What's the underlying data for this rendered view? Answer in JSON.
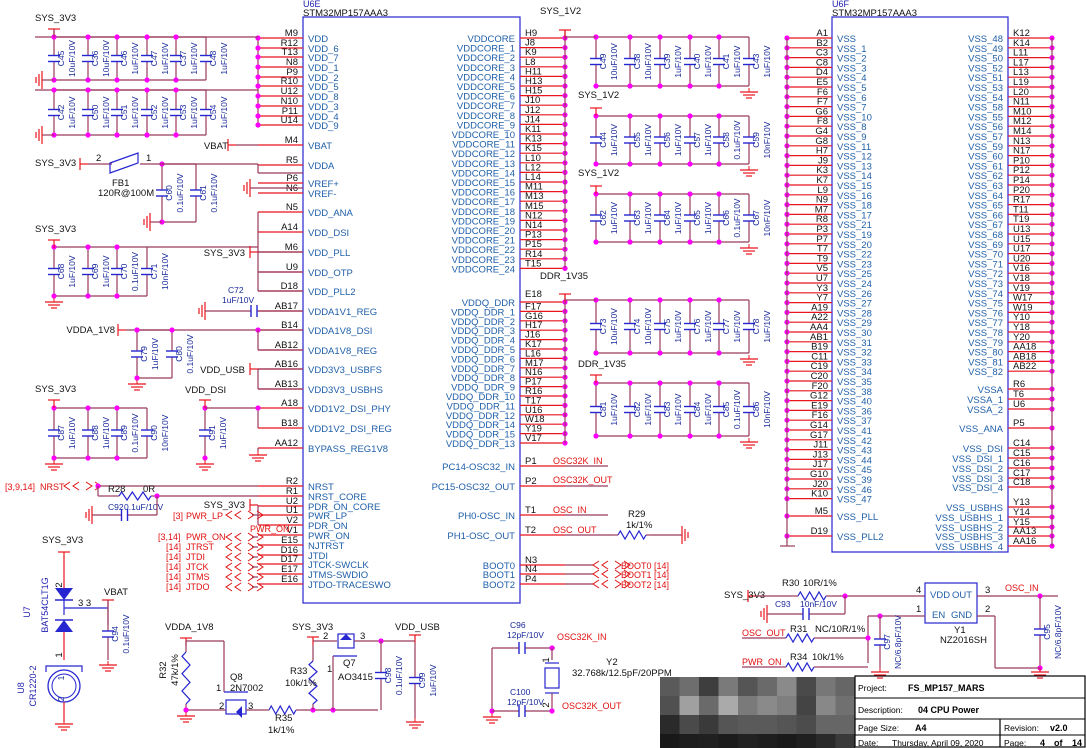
{
  "u6e": {
    "ref": "U6E",
    "part": "STM32MP157AAA3",
    "left_pins": [
      [
        "M9",
        "VDD"
      ],
      [
        "R12",
        "VDD_6"
      ],
      [
        "T13",
        "VDD_7"
      ],
      [
        "N8",
        "VDD_1"
      ],
      [
        "P9",
        "VDD_2"
      ],
      [
        "R10",
        "VDD_5"
      ],
      [
        "U12",
        "VDD_8"
      ],
      [
        "N10",
        "VDD_3"
      ],
      [
        "P11",
        "VDD_4"
      ],
      [
        "U14",
        "VDD_9"
      ],
      [
        "M4",
        "VBAT"
      ],
      [
        "R5",
        "VDDA"
      ],
      [
        "P6",
        "VREF+"
      ],
      [
        "N6",
        "VREF-"
      ],
      [
        "N5",
        "VDD_ANA"
      ],
      [
        "A14",
        "VDD_DSI"
      ],
      [
        "M6",
        "VDD_PLL"
      ],
      [
        "U9",
        "VDD_OTP"
      ],
      [
        "D18",
        "VDD_PLL2"
      ],
      [
        "AB17",
        "VDDA1V1_REG"
      ],
      [
        "B14",
        "VDDA1V8_DSI"
      ],
      [
        "AB12",
        "VDDA1V8_REG"
      ],
      [
        "AB16",
        "VDD3V3_USBFS"
      ],
      [
        "AB13",
        "VDD3V3_USBHS"
      ],
      [
        "A18",
        "VDD1V2_DSI_PHY"
      ],
      [
        "B18",
        "VDD1V2_DSI_REG"
      ],
      [
        "AA12",
        "BYPASS_REG1V8"
      ],
      [
        "R2",
        "NRST"
      ],
      [
        "R1",
        "NRST_CORE"
      ],
      [
        "U2",
        "PDR_ON_CORE"
      ],
      [
        "U1",
        "PWR_LP"
      ],
      [
        "V2",
        "PDR_ON"
      ],
      [
        "V1",
        "PWR_ON"
      ],
      [
        "E15",
        "NJTRST"
      ],
      [
        "D16",
        "JTDI"
      ],
      [
        "D17",
        "JTCK-SWCLK"
      ],
      [
        "E17",
        "JTMS-SWDIO"
      ],
      [
        "E16",
        "JTDO-TRACESWO"
      ]
    ],
    "right_pins": [
      [
        "H9",
        "VDDCORE"
      ],
      [
        "J8",
        "VDDCORE_1"
      ],
      [
        "K9",
        "VDDCORE_2"
      ],
      [
        "L8",
        "VDDCORE_3"
      ],
      [
        "H11",
        "VDDCORE_4"
      ],
      [
        "H13",
        "VDDCORE_5"
      ],
      [
        "H15",
        "VDDCORE_6"
      ],
      [
        "J10",
        "VDDCORE_7"
      ],
      [
        "J12",
        "VDDCORE_8"
      ],
      [
        "J14",
        "VDDCORE_9"
      ],
      [
        "K11",
        "VDDCORE_10"
      ],
      [
        "K13",
        "VDDCORE_11"
      ],
      [
        "K15",
        "VDDCORE_12"
      ],
      [
        "L10",
        "VDDCORE_13"
      ],
      [
        "L12",
        "VDDCORE_14"
      ],
      [
        "L14",
        "VDDCORE_15"
      ],
      [
        "M11",
        "VDDCORE_16"
      ],
      [
        "M13",
        "VDDCORE_17"
      ],
      [
        "M15",
        "VDDCORE_18"
      ],
      [
        "N12",
        "VDDCORE_19"
      ],
      [
        "N14",
        "VDDCORE_20"
      ],
      [
        "P13",
        "VDDCORE_21"
      ],
      [
        "P15",
        "VDDCORE_22"
      ],
      [
        "R14",
        "VDDCORE_23"
      ],
      [
        "T15",
        "VDDCORE_24"
      ],
      [
        "E18",
        "VDDQ_DDR"
      ],
      [
        "F17",
        "VDDQ_DDR_1"
      ],
      [
        "G16",
        "VDDQ_DDR_2"
      ],
      [
        "H17",
        "VDDQ_DDR_3"
      ],
      [
        "J16",
        "VDDQ_DDR_4"
      ],
      [
        "K17",
        "VDDQ_DDR_5"
      ],
      [
        "L16",
        "VDDQ_DDR_6"
      ],
      [
        "M17",
        "VDDQ_DDR_7"
      ],
      [
        "N16",
        "VDDQ_DDR_8"
      ],
      [
        "P17",
        "VDDQ_DDR_9"
      ],
      [
        "R16",
        "VDDQ_DDR_10"
      ],
      [
        "T17",
        "VDDQ_DDR_11"
      ],
      [
        "U16",
        "VDDQ_DDR_12"
      ],
      [
        "W18",
        "VDDQ_DDR_14"
      ],
      [
        "Y19",
        "VDDQ_DDR_15"
      ],
      [
        "V17",
        "VDDQ_DDR_13"
      ],
      [
        "P1",
        "PC14-OSC32_IN"
      ],
      [
        "P2",
        "PC15-OSC32_OUT"
      ],
      [
        "T1",
        "PH0-OSC_IN"
      ],
      [
        "T2",
        "PH1-OSC_OUT"
      ],
      [
        "N3",
        "BOOT0"
      ],
      [
        "N4",
        "BOOT1"
      ],
      [
        "P4",
        "BOOT2"
      ]
    ]
  },
  "u6f": {
    "ref": "U6F",
    "part": "STM32MP157AAA3",
    "left_pins": [
      [
        "A1",
        "VSS"
      ],
      [
        "B2",
        "VSS_1"
      ],
      [
        "C3",
        "VSS_2"
      ],
      [
        "C8",
        "VSS_3"
      ],
      [
        "D4",
        "VSS_4"
      ],
      [
        "E5",
        "VSS_5"
      ],
      [
        "F6",
        "VSS_6"
      ],
      [
        "F7",
        "VSS_7"
      ],
      [
        "G6",
        "VSS_10"
      ],
      [
        "F8",
        "VSS_8"
      ],
      [
        "G4",
        "VSS_9"
      ],
      [
        "G8",
        "VSS_11"
      ],
      [
        "H7",
        "VSS_12"
      ],
      [
        "J9",
        "VSS_13"
      ],
      [
        "K3",
        "VSS_14"
      ],
      [
        "K7",
        "VSS_15"
      ],
      [
        "L9",
        "VSS_16"
      ],
      [
        "N9",
        "VSS_18"
      ],
      [
        "M7",
        "VSS_17"
      ],
      [
        "R8",
        "VSS_21"
      ],
      [
        "P3",
        "VSS_19"
      ],
      [
        "P7",
        "VSS_20"
      ],
      [
        "T7",
        "VSS_22"
      ],
      [
        "T9",
        "VSS_23"
      ],
      [
        "V5",
        "VSS_25"
      ],
      [
        "U7",
        "VSS_24"
      ],
      [
        "Y3",
        "VSS_26"
      ],
      [
        "Y7",
        "VSS_27"
      ],
      [
        "A19",
        "VSS_28"
      ],
      [
        "A22",
        "VSS_29"
      ],
      [
        "AA4",
        "VSS_30"
      ],
      [
        "AB1",
        "VSS_31"
      ],
      [
        "B19",
        "VSS_32"
      ],
      [
        "C11",
        "VSS_33"
      ],
      [
        "C19",
        "VSS_34"
      ],
      [
        "C20",
        "VSS_35"
      ],
      [
        "F20",
        "VSS_38"
      ],
      [
        "G12",
        "VSS_40"
      ],
      [
        "E19",
        "VSS_36"
      ],
      [
        "F16",
        "VSS_37"
      ],
      [
        "G14",
        "VSS_41"
      ],
      [
        "G17",
        "VSS_42"
      ],
      [
        "J11",
        "VSS_43"
      ],
      [
        "J13",
        "VSS_44"
      ],
      [
        "J17",
        "VSS_45"
      ],
      [
        "G10",
        "VSS_39"
      ],
      [
        "J20",
        "VSS_46"
      ],
      [
        "K10",
        "VSS_47"
      ],
      [
        "M5",
        "VSS_PLL"
      ],
      [
        "D19",
        "VSS_PLL2"
      ]
    ],
    "right_pins": [
      [
        "K12",
        "VSS_48"
      ],
      [
        "K14",
        "VSS_49"
      ],
      [
        "L11",
        "VSS_50"
      ],
      [
        "L17",
        "VSS_52"
      ],
      [
        "L13",
        "VSS_51"
      ],
      [
        "L19",
        "VSS_53"
      ],
      [
        "L20",
        "VSS_54"
      ],
      [
        "N11",
        "VSS_58"
      ],
      [
        "M10",
        "VSS_55"
      ],
      [
        "M12",
        "VSS_56"
      ],
      [
        "M14",
        "VSS_57"
      ],
      [
        "N13",
        "VSS_59"
      ],
      [
        "N17",
        "VSS_60"
      ],
      [
        "P10",
        "VSS_61"
      ],
      [
        "P12",
        "VSS_62"
      ],
      [
        "P14",
        "VSS_63"
      ],
      [
        "P20",
        "VSS_64"
      ],
      [
        "R17",
        "VSS_65"
      ],
      [
        "T11",
        "VSS_66"
      ],
      [
        "T19",
        "VSS_67"
      ],
      [
        "U13",
        "VSS_68"
      ],
      [
        "U15",
        "VSS_69"
      ],
      [
        "U17",
        "VSS_70"
      ],
      [
        "U20",
        "VSS_71"
      ],
      [
        "V16",
        "VSS_72"
      ],
      [
        "V18",
        "VSS_73"
      ],
      [
        "V19",
        "VSS_74"
      ],
      [
        "W17",
        "VSS_75"
      ],
      [
        "W19",
        "VSS_76"
      ],
      [
        "Y10",
        "VSS_77"
      ],
      [
        "Y18",
        "VSS_78"
      ],
      [
        "Y20",
        "VSS_79"
      ],
      [
        "AA18",
        "VSS_80"
      ],
      [
        "AB18",
        "VSS_81"
      ],
      [
        "AB22",
        "VSS_82"
      ],
      [
        "R6",
        "VSSA"
      ],
      [
        "T6",
        "VSSA_1"
      ],
      [
        "U6",
        "VSSA_2"
      ],
      [
        "P5",
        "VSS_ANA"
      ],
      [
        "C14",
        "VSS_DSI"
      ],
      [
        "C15",
        "VSS_DSI_1"
      ],
      [
        "C16",
        "VSS_DSI_2"
      ],
      [
        "C17",
        "VSS_DSI_3"
      ],
      [
        "C18",
        "VSS_DSI_4"
      ],
      [
        "Y13",
        "VSS_USBHS"
      ],
      [
        "Y14",
        "VSS_USBHS_1"
      ],
      [
        "Y15",
        "VSS_USBHS_2"
      ],
      [
        "AA13",
        "VSS_USBHS_3"
      ],
      [
        "AA16",
        "VSS_USBHS_4"
      ]
    ]
  },
  "caps": {
    "vdd_a": [
      [
        "C45",
        "10uF/10V"
      ],
      [
        "C36",
        "10uF/10V"
      ],
      [
        "C46",
        "1uF/10V"
      ],
      [
        "C47",
        "1uF/10V"
      ],
      [
        "C37",
        "1uF/10V"
      ],
      [
        "C48",
        "1uF/10V"
      ]
    ],
    "vdd_b": [
      [
        "C42",
        "1uF/10V"
      ],
      [
        "C50",
        "1uF/10V"
      ],
      [
        "C51",
        "1uF/10V"
      ],
      [
        "C52",
        "1uF/10V"
      ],
      [
        "C53",
        "1uF/10V"
      ],
      [
        "C54",
        "1uF/10V"
      ]
    ],
    "vdda": [
      [
        "C60",
        "0.1uF/10V"
      ],
      [
        "C61",
        "0.1uF/10V"
      ]
    ],
    "ana": [
      [
        "C68",
        "1uF/10V"
      ],
      [
        "C69",
        "1uF/10V"
      ],
      [
        "C70",
        "0.1uF/10V"
      ],
      [
        "C71",
        "10nF/10V"
      ]
    ],
    "v1v8": [
      [
        "C79",
        "1uF/10V"
      ],
      [
        "C80",
        "0.1uF/10V"
      ]
    ],
    "usb3v3": [
      [
        "C87",
        "1uF/10V"
      ],
      [
        "C88",
        "1uF/10V"
      ],
      [
        "C89",
        "0.1uF/10V"
      ],
      [
        "C90",
        "10nF/10V"
      ]
    ],
    "dsi": [
      [
        "C91",
        "1uF/10V"
      ]
    ],
    "core_a": [
      [
        "C49",
        "10uF/10V"
      ],
      [
        "C38",
        "10uF/10V"
      ],
      [
        "C39",
        "1uF/10V"
      ],
      [
        "C40",
        "1uF/10V"
      ],
      [
        "C41",
        "1uF/10V"
      ],
      [
        "C43",
        "1uF/10V"
      ]
    ],
    "core_b": [
      [
        "C44",
        "1uF/10V"
      ],
      [
        "C55",
        "1uF/10V"
      ],
      [
        "C56",
        "1uF/10V"
      ],
      [
        "C57",
        "1uF/10V"
      ],
      [
        "C58",
        "0.1uF/10V"
      ],
      [
        "C59",
        "10nF/10V"
      ]
    ],
    "core_c": [
      [
        "C62",
        "1uF/10V"
      ],
      [
        "C63",
        "1uF/10V"
      ],
      [
        "C64",
        "1uF/10V"
      ],
      [
        "C65",
        "1uF/10V"
      ],
      [
        "C66",
        "0.1uF/10V"
      ],
      [
        "C67",
        "10nF/10V"
      ]
    ],
    "ddr_a": [
      [
        "C73",
        "10uF/10V"
      ],
      [
        "C74",
        "10uF/10V"
      ],
      [
        "C75",
        "1uF/10V"
      ],
      [
        "C76",
        "1uF/10V"
      ],
      [
        "C77",
        "1uF/10V"
      ],
      [
        "C78",
        "1uF/10V"
      ]
    ],
    "ddr_b": [
      [
        "C81",
        "1uF/10V"
      ],
      [
        "C82",
        "1uF/10V"
      ],
      [
        "C83",
        "1uF/10V"
      ],
      [
        "C84",
        "1uF/10V"
      ],
      [
        "C85",
        "0.1uF/10V"
      ],
      [
        "C86",
        "10nF/10V"
      ]
    ]
  },
  "nets": {
    "sys3v3_vdd": "SYS_3V3",
    "vbat_m4": "VBAT",
    "sys3v3_fb": "SYS_3V3",
    "sys3v3_ana": "SYS_3V3",
    "sys3v3_pll": "SYS_3V3",
    "vdda_1v8": "VDDA_1V8",
    "vdd_usb": "VDD_USB",
    "sys3v3_usb": "SYS_3V3",
    "vdd_dsi": "VDD_DSI",
    "sys_1v2_top": "SYS_1V2",
    "sys_1v2_b": "SYS_1V2",
    "sys_1v2_c": "SYS_1V2",
    "ddr_1v35_top": "DDR_1V35",
    "ddr_1v35_b": "DDR_1V35",
    "sys3v3_pdr": "SYS_3V3",
    "sys3v3_u7": "SYS_3V3",
    "vbat_u7": "VBAT",
    "vdda_1v8_q8": "VDDA_1V8",
    "sys3v3_q7": "SYS_3V3",
    "vdd_usb_q7": "VDD_USB",
    "sys3v3_y1": "SYS_3V3"
  },
  "offpage": {
    "nrst_ref": "[3,9,14]",
    "nrst": "NRST",
    "pwr_lp_ref": "[3]",
    "pwr_lp": "PWR_LP",
    "pwr_on_wire": "PWR_ON",
    "pwr_on_ref": "[3,14]",
    "pwr_on": "PWR_ON",
    "jtrst_ref": "[14]",
    "jtrst": "JTRST",
    "jtdi_ref": "[14]",
    "jtdi": "JTDI",
    "jtck_ref": "[14]",
    "jtck": "JTCK",
    "jtms_ref": "[14]",
    "jtms": "JTMS",
    "jtdo_ref": "[14]",
    "jtdo": "JTDO",
    "osc32k_in": "OSC32K_IN",
    "osc32k_out": "OSC32K_OUT",
    "osc_in": "OSC_IN",
    "osc_out": "OSC_OUT",
    "boot0": "BOOT0",
    "boot1": "BOOT1",
    "boot2": "BOOT2",
    "boot0_ref": "[14]",
    "boot1_ref": "[14]",
    "boot2_ref": "[14]",
    "osc32k_in_b": "OSC32K_IN",
    "osc32k_out_b": "OSC32K_OUT",
    "osc_out_b": "OSC_OUT",
    "pwr_on_b": "PWR_ON",
    "osc_in_b": "OSC_IN"
  },
  "components": {
    "fb1_ref": "FB1",
    "fb1_val": "120R@100M",
    "fb1_p2": "2",
    "fb1_p1": "1",
    "c72_ref": "C72",
    "c72_val": "1uF/10V",
    "r28_ref": "R28",
    "r28_val": "0R",
    "c92_ref": "C92",
    "c92_val": "0.1uF/10V",
    "r29_ref": "R29",
    "r29_val": "1k/1%",
    "u7_ref": "U7",
    "u7_part": "BAT54CLT1G",
    "u7_p3": "3 3",
    "u7_p2": "2",
    "u7_p1": "1",
    "c94_ref": "C94",
    "c94_val": "0.1uF/10V",
    "u8_ref": "U8",
    "u8_part": "CR1220-2",
    "u8_p1": "1",
    "u8_p2": "2",
    "r32_ref": "R32",
    "r32_val": "47k/1%",
    "q8_ref": "Q8",
    "q8_part": "2N7002",
    "q8_p1": "1",
    "q8_p2": "2",
    "q8_p3": "3",
    "r35_ref": "R35",
    "r35_val": "1k/1%",
    "r33_ref": "R33",
    "r33_val": "10k/1%",
    "q7_ref": "Q7",
    "q7_part": "AO3415",
    "q7_p1": "1",
    "q7_p2": "2",
    "q7_p3": "3",
    "c98_ref": "C98",
    "c98_val": "0.1uF/10V",
    "c99_ref": "C99",
    "c99_val": "1uF/10V",
    "c96_ref": "C96",
    "c96_val": "12pF/10V",
    "c100_ref": "C100",
    "c100_val": "12pF/10V",
    "y2_ref": "Y2",
    "y2_val": "32.768k/12.5pF/20PPM",
    "y2_p1": "1",
    "y2_p2": "2",
    "r30_ref": "R30",
    "r30_val": "10R/1%",
    "c93_ref": "C93",
    "c93_val": "10nF/10V",
    "r31_ref": "R31",
    "r31_val": "NC/10R/1%",
    "r34_ref": "R34",
    "r34_val": "10k/1%",
    "y1_vdd": "VDD",
    "y1_out": "OUT",
    "y1_en": "EN",
    "y1_gnd": "GND",
    "y1_ref": "Y1",
    "y1_part": "NZ2016SH",
    "y1_p4": "4",
    "y1_p3": "3",
    "y1_p1": "1",
    "y1_p2": "2",
    "c97_ref": "C97",
    "c97_val": "NC/6.8pF/10V",
    "c95_ref": "C95",
    "c95_val": "NC/6.8pF/10V"
  },
  "title_block": {
    "project_label": "Project:",
    "project": "FS_MP157_MARS",
    "description_label": "Description:",
    "description": "04 CPU Power",
    "page_size_label": "Page Size:",
    "page_size": "A4",
    "revision_label": "Revision:",
    "revision": "v2.0",
    "date_label": "Date:",
    "date": "Thursday, April 09, 2020",
    "page_label": "Page:",
    "page": "4",
    "of_label": "of",
    "total_pages": "14"
  },
  "colors": {
    "wire": "#9a3a5e",
    "pin": "#e8141e",
    "component": "#2626d0",
    "pin_name": "#1f5fa8",
    "junction": "#ff00ff",
    "offpage": "#e01010"
  }
}
